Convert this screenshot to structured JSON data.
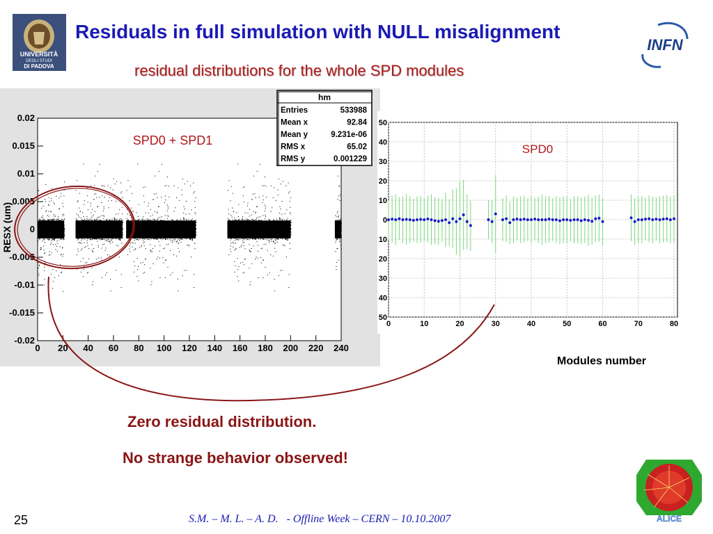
{
  "slide": {
    "title": "Residuals in full simulation with NULL misalignment",
    "subtitle": "residual distributions for the whole SPD modules",
    "conclusion_line1": "Zero residual distribution.",
    "conclusion_line2": "No strange behavior observed!",
    "slide_number": "25",
    "footer": "S.M. – M. L. – A. D.   - Offline Week – CERN – 10.10.2007",
    "modules_axis_label": "Modules number",
    "logos": {
      "left": {
        "line1": "UNIVERSITÀ",
        "line2": "DEGLI STUDI",
        "line3": "DI PADOVA"
      },
      "right_top": "INFN",
      "right_bottom": "ALICE"
    }
  },
  "stats_box": {
    "name": "hm",
    "rows": [
      {
        "label": "Entries",
        "value": "533988"
      },
      {
        "label": "Mean x",
        "value": "92.84"
      },
      {
        "label": "Mean y",
        "value": "9.231e-06"
      },
      {
        "label": "RMS x",
        "value": "65.02"
      },
      {
        "label": "RMS y",
        "value": "0.001229"
      }
    ]
  },
  "chart_data": [
    {
      "type": "scatter",
      "title": "SPD0 + SPD1",
      "ylabel": "RESX (um)",
      "xlim": [
        0,
        240
      ],
      "ylim": [
        -0.02,
        0.02
      ],
      "x_ticks": [
        "0",
        "20",
        "40",
        "60",
        "80",
        "100",
        "120",
        "140",
        "160",
        "180",
        "200",
        "220",
        "240"
      ],
      "y_ticks": [
        "0.02",
        "0.015",
        "0.01",
        "0.005",
        "0",
        "-0.005",
        "-0.01",
        "-0.015",
        "-0.02"
      ],
      "occupied_module_ranges": [
        [
          0,
          21
        ],
        [
          30,
          67
        ],
        [
          70,
          125
        ],
        [
          150,
          200
        ],
        [
          235,
          240
        ]
      ],
      "band_half_width": 0.002,
      "tail_extent": 0.012,
      "color": "#000000"
    },
    {
      "type": "scatter",
      "title": "SPD0",
      "xlabel": "Modules number",
      "xlim": [
        0,
        80
      ],
      "ylim": [
        -50,
        50
      ],
      "x_ticks": [
        "0",
        "10",
        "20",
        "30",
        "40",
        "50",
        "60",
        "70",
        "80"
      ],
      "y_ticks": [
        "50",
        "40",
        "30",
        "20",
        "10",
        "0",
        "10",
        "20",
        "30",
        "40",
        "50"
      ],
      "marker_color": "#1a1acc",
      "error_color": "#7ad87a",
      "points": [
        {
          "x": 0,
          "y": 0,
          "e": 10
        },
        {
          "x": 1,
          "y": 0.3,
          "e": 12
        },
        {
          "x": 2,
          "y": 0,
          "e": 13
        },
        {
          "x": 3,
          "y": 0.5,
          "e": 11
        },
        {
          "x": 4,
          "y": 0,
          "e": 12
        },
        {
          "x": 5,
          "y": 0.2,
          "e": 13
        },
        {
          "x": 6,
          "y": 0,
          "e": 12
        },
        {
          "x": 7,
          "y": -0.3,
          "e": 11
        },
        {
          "x": 8,
          "y": 0,
          "e": 12
        },
        {
          "x": 9,
          "y": 0.2,
          "e": 12
        },
        {
          "x": 10,
          "y": 0,
          "e": 11
        },
        {
          "x": 11,
          "y": 0.4,
          "e": 12
        },
        {
          "x": 12,
          "y": 0,
          "e": 13
        },
        {
          "x": 13,
          "y": -0.5,
          "e": 12
        },
        {
          "x": 14,
          "y": -0.8,
          "e": 12
        },
        {
          "x": 15,
          "y": -0.4,
          "e": 11
        },
        {
          "x": 16,
          "y": 0,
          "e": 14
        },
        {
          "x": 17,
          "y": -1.5,
          "e": 12
        },
        {
          "x": 18,
          "y": 0.5,
          "e": 15
        },
        {
          "x": 19,
          "y": -1,
          "e": 17
        },
        {
          "x": 20,
          "y": 0.5,
          "e": 19
        },
        {
          "x": 21,
          "y": 2.5,
          "e": 18
        },
        {
          "x": 22,
          "y": -1,
          "e": 14
        },
        {
          "x": 23,
          "y": -3,
          "e": 13
        },
        {
          "x": 28,
          "y": 0,
          "e": 10
        },
        {
          "x": 29,
          "y": -1,
          "e": 11
        },
        {
          "x": 30,
          "y": 3,
          "e": 20
        },
        {
          "x": 32,
          "y": 0,
          "e": 11
        },
        {
          "x": 33,
          "y": 0.5,
          "e": 12
        },
        {
          "x": 34,
          "y": -1.5,
          "e": 11
        },
        {
          "x": 35,
          "y": 0,
          "e": 12
        },
        {
          "x": 36,
          "y": 0.3,
          "e": 11
        },
        {
          "x": 37,
          "y": 0,
          "e": 12
        },
        {
          "x": 38,
          "y": 0.3,
          "e": 12
        },
        {
          "x": 39,
          "y": 0,
          "e": 11
        },
        {
          "x": 40,
          "y": 0,
          "e": 12
        },
        {
          "x": 41,
          "y": 0.3,
          "e": 11
        },
        {
          "x": 42,
          "y": 0,
          "e": 12
        },
        {
          "x": 43,
          "y": 0,
          "e": 13
        },
        {
          "x": 44,
          "y": 0,
          "e": 12
        },
        {
          "x": 45,
          "y": 0.3,
          "e": 12
        },
        {
          "x": 46,
          "y": 0,
          "e": 11
        },
        {
          "x": 47,
          "y": 0,
          "e": 12
        },
        {
          "x": 48,
          "y": -0.5,
          "e": 12
        },
        {
          "x": 49,
          "y": 0,
          "e": 12
        },
        {
          "x": 50,
          "y": 0,
          "e": 12
        },
        {
          "x": 51,
          "y": -0.3,
          "e": 11
        },
        {
          "x": 52,
          "y": 0,
          "e": 12
        },
        {
          "x": 53,
          "y": 0,
          "e": 12
        },
        {
          "x": 54,
          "y": -0.5,
          "e": 12
        },
        {
          "x": 55,
          "y": 0,
          "e": 12
        },
        {
          "x": 56,
          "y": -0.3,
          "e": 13
        },
        {
          "x": 57,
          "y": -0.8,
          "e": 12
        },
        {
          "x": 58,
          "y": 0.5,
          "e": 12
        },
        {
          "x": 59,
          "y": 0.8,
          "e": 12
        },
        {
          "x": 60,
          "y": -1,
          "e": 12
        },
        {
          "x": 68,
          "y": 1,
          "e": 12
        },
        {
          "x": 69,
          "y": -1,
          "e": 12
        },
        {
          "x": 70,
          "y": 0,
          "e": 12
        },
        {
          "x": 71,
          "y": 0,
          "e": 12
        },
        {
          "x": 72,
          "y": 0.3,
          "e": 11
        },
        {
          "x": 73,
          "y": 0.5,
          "e": 12
        },
        {
          "x": 74,
          "y": 0,
          "e": 12
        },
        {
          "x": 75,
          "y": 0.3,
          "e": 11
        },
        {
          "x": 76,
          "y": 0,
          "e": 12
        },
        {
          "x": 77,
          "y": 0.3,
          "e": 12
        },
        {
          "x": 78,
          "y": 0.5,
          "e": 12
        },
        {
          "x": 79,
          "y": 0,
          "e": 12
        },
        {
          "x": 80,
          "y": 0.5,
          "e": 12
        }
      ]
    }
  ]
}
